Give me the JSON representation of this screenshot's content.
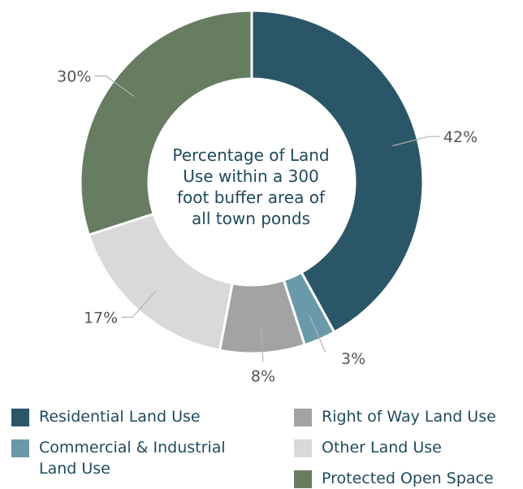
{
  "chart_data": {
    "type": "pie",
    "title": "Percentage of Land Use within a 300 foot buffer area of all town ponds",
    "slices": [
      {
        "label": "Residential Land Use",
        "value": 42,
        "display": "42%",
        "color": "#2b5667"
      },
      {
        "label": "Commercial & Industrial Land Use",
        "value": 3,
        "display": "3%",
        "color": "#6a9aa9"
      },
      {
        "label": "Right of Way Land Use",
        "value": 8,
        "display": "8%",
        "color": "#a3a3a3"
      },
      {
        "label": "Other Land Use",
        "value": 17,
        "display": "17%",
        "color": "#d9d9d9"
      },
      {
        "label": "Protected Open Space",
        "value": 30,
        "display": "30%",
        "color": "#677d62"
      }
    ],
    "legend": {
      "placement": "bottom"
    }
  }
}
